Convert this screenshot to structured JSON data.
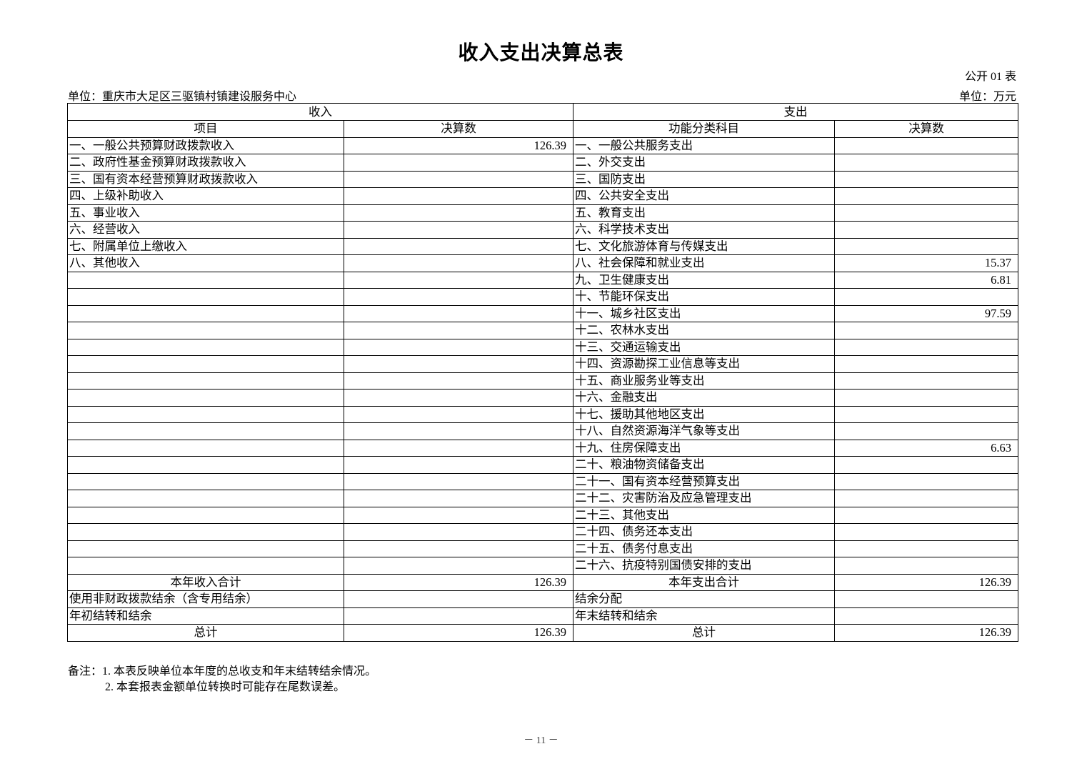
{
  "title": "收入支出决算总表",
  "table_no": "公开 01 表",
  "unit_left": "单位：重庆市大足区三驱镇村镇建设服务中心",
  "unit_right": "单位：万元",
  "header": {
    "income": "收入",
    "expense": "支出",
    "item": "项目",
    "amount": "决算数",
    "func_item": "功能分类科目",
    "amount2": "决算数"
  },
  "income_rows": [
    {
      "label": "一、一般公共预算财政拨款收入",
      "value": "126.39"
    },
    {
      "label": "二、政府性基金预算财政拨款收入",
      "value": ""
    },
    {
      "label": "三、国有资本经营预算财政拨款收入",
      "value": ""
    },
    {
      "label": "四、上级补助收入",
      "value": ""
    },
    {
      "label": "五、事业收入",
      "value": ""
    },
    {
      "label": "六、经营收入",
      "value": ""
    },
    {
      "label": "七、附属单位上缴收入",
      "value": ""
    },
    {
      "label": "八、其他收入",
      "value": ""
    }
  ],
  "expense_rows": [
    {
      "label": "一、一般公共服务支出",
      "value": ""
    },
    {
      "label": "二、外交支出",
      "value": ""
    },
    {
      "label": "三、国防支出",
      "value": ""
    },
    {
      "label": "四、公共安全支出",
      "value": ""
    },
    {
      "label": "五、教育支出",
      "value": ""
    },
    {
      "label": "六、科学技术支出",
      "value": ""
    },
    {
      "label": "七、文化旅游体育与传媒支出",
      "value": ""
    },
    {
      "label": "八、社会保障和就业支出",
      "value": "15.37"
    },
    {
      "label": "九、卫生健康支出",
      "value": "6.81"
    },
    {
      "label": "十、节能环保支出",
      "value": ""
    },
    {
      "label": "十一、城乡社区支出",
      "value": "97.59"
    },
    {
      "label": "十二、农林水支出",
      "value": ""
    },
    {
      "label": "十三、交通运输支出",
      "value": ""
    },
    {
      "label": "十四、资源勘探工业信息等支出",
      "value": ""
    },
    {
      "label": "十五、商业服务业等支出",
      "value": ""
    },
    {
      "label": "十六、金融支出",
      "value": ""
    },
    {
      "label": "十七、援助其他地区支出",
      "value": ""
    },
    {
      "label": "十八、自然资源海洋气象等支出",
      "value": ""
    },
    {
      "label": "十九、住房保障支出",
      "value": "6.63"
    },
    {
      "label": "二十、粮油物资储备支出",
      "value": ""
    },
    {
      "label": "二十一、国有资本经营预算支出",
      "value": ""
    },
    {
      "label": "二十二、灾害防治及应急管理支出",
      "value": ""
    },
    {
      "label": "二十三、其他支出",
      "value": ""
    },
    {
      "label": "二十四、债务还本支出",
      "value": ""
    },
    {
      "label": "二十五、债务付息支出",
      "value": ""
    },
    {
      "label": "二十六、抗疫特别国债安排的支出",
      "value": ""
    }
  ],
  "summary_rows": [
    {
      "in_label": "本年收入合计",
      "in_value": "126.39",
      "ex_label": "本年支出合计",
      "ex_value": "126.39",
      "center": true
    },
    {
      "in_label": "使用非财政拨款结余（含专用结余）",
      "in_value": "",
      "ex_label": "结余分配",
      "ex_value": "",
      "center": false
    },
    {
      "in_label": "年初结转和结余",
      "in_value": "",
      "ex_label": "年末结转和结余",
      "ex_value": "",
      "center": false
    },
    {
      "in_label": "总计",
      "in_value": "126.39",
      "ex_label": "总计",
      "ex_value": "126.39",
      "center": true
    }
  ],
  "notes": {
    "line1": "备注：1. 本表反映单位本年度的总收支和年末结转结余情况。",
    "line2": "2. 本套报表金额单位转换时可能存在尾数误差。"
  },
  "page_number": "－ 11 －"
}
